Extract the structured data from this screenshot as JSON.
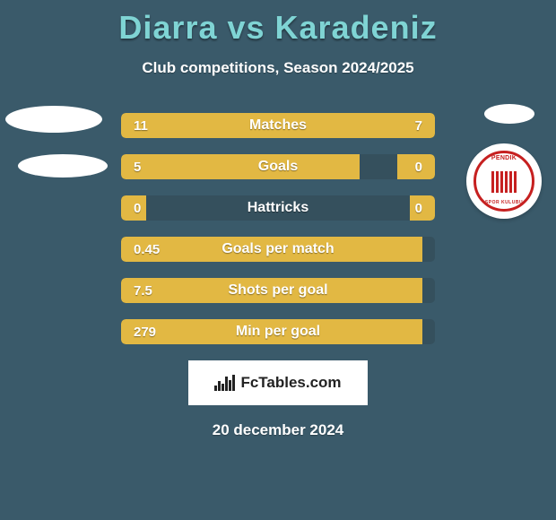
{
  "header": {
    "title": "Diarra vs Karadeniz",
    "subtitle": "Club competitions, Season 2024/2025",
    "title_color": "#7fd4d4"
  },
  "background_color": "#3a5a6a",
  "bar_bg_color": "#35505d",
  "bar_fill_color": "#e2b843",
  "team_right_logo": {
    "name": "PENDIK",
    "sub": "SPOR KULUBU",
    "color": "#c62020"
  },
  "stats": [
    {
      "label": "Matches",
      "left_val": "11",
      "right_val": "7",
      "left_pct": 61,
      "right_pct": 39
    },
    {
      "label": "Goals",
      "left_val": "5",
      "right_val": "0",
      "left_pct": 76,
      "right_pct": 12
    },
    {
      "label": "Hattricks",
      "left_val": "0",
      "right_val": "0",
      "left_pct": 8,
      "right_pct": 8
    },
    {
      "label": "Goals per match",
      "left_val": "0.45",
      "right_val": "",
      "left_pct": 96,
      "right_pct": 0
    },
    {
      "label": "Shots per goal",
      "left_val": "7.5",
      "right_val": "",
      "left_pct": 96,
      "right_pct": 0
    },
    {
      "label": "Min per goal",
      "left_val": "279",
      "right_val": "",
      "left_pct": 96,
      "right_pct": 0
    }
  ],
  "attribution": "FcTables.com",
  "date": "20 december 2024"
}
